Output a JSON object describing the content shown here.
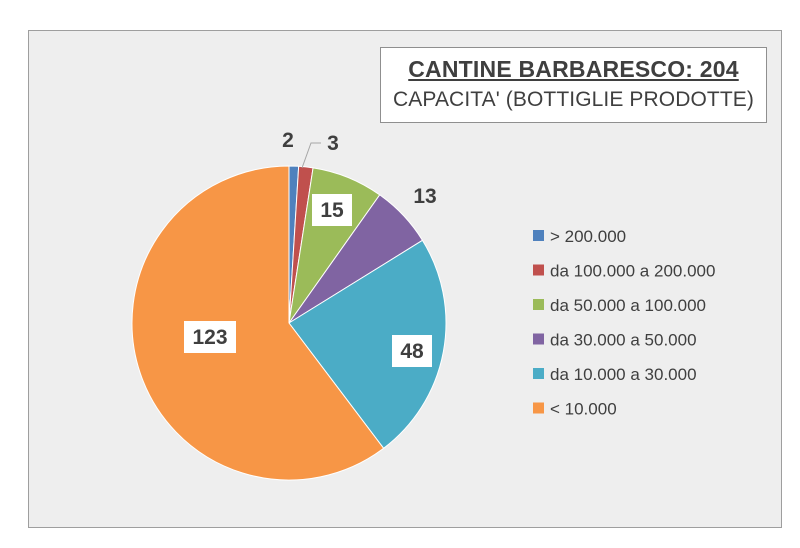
{
  "title": "CANTINE BARBARESCO: 204",
  "subtitle": "CAPACITA' (BOTTIGLIE PRODOTTE)",
  "chart_data": {
    "type": "pie",
    "title": "CANTINE BARBARESCO: 204",
    "subtitle": "CAPACITA' (BOTTIGLIE PRODOTTE)",
    "legend_position": "right",
    "categories": [
      "> 200.000",
      "da 100.000 a 200.000",
      "da 50.000 a 100.000",
      "da 30.000 a 50.000",
      "da 10.000 a 30.000",
      "< 10.000"
    ],
    "values": [
      2,
      3,
      15,
      13,
      48,
      123
    ],
    "colors": [
      "#4f81bd",
      "#c0504d",
      "#9bbb59",
      "#8064a2",
      "#4bacc6",
      "#f79646"
    ]
  }
}
